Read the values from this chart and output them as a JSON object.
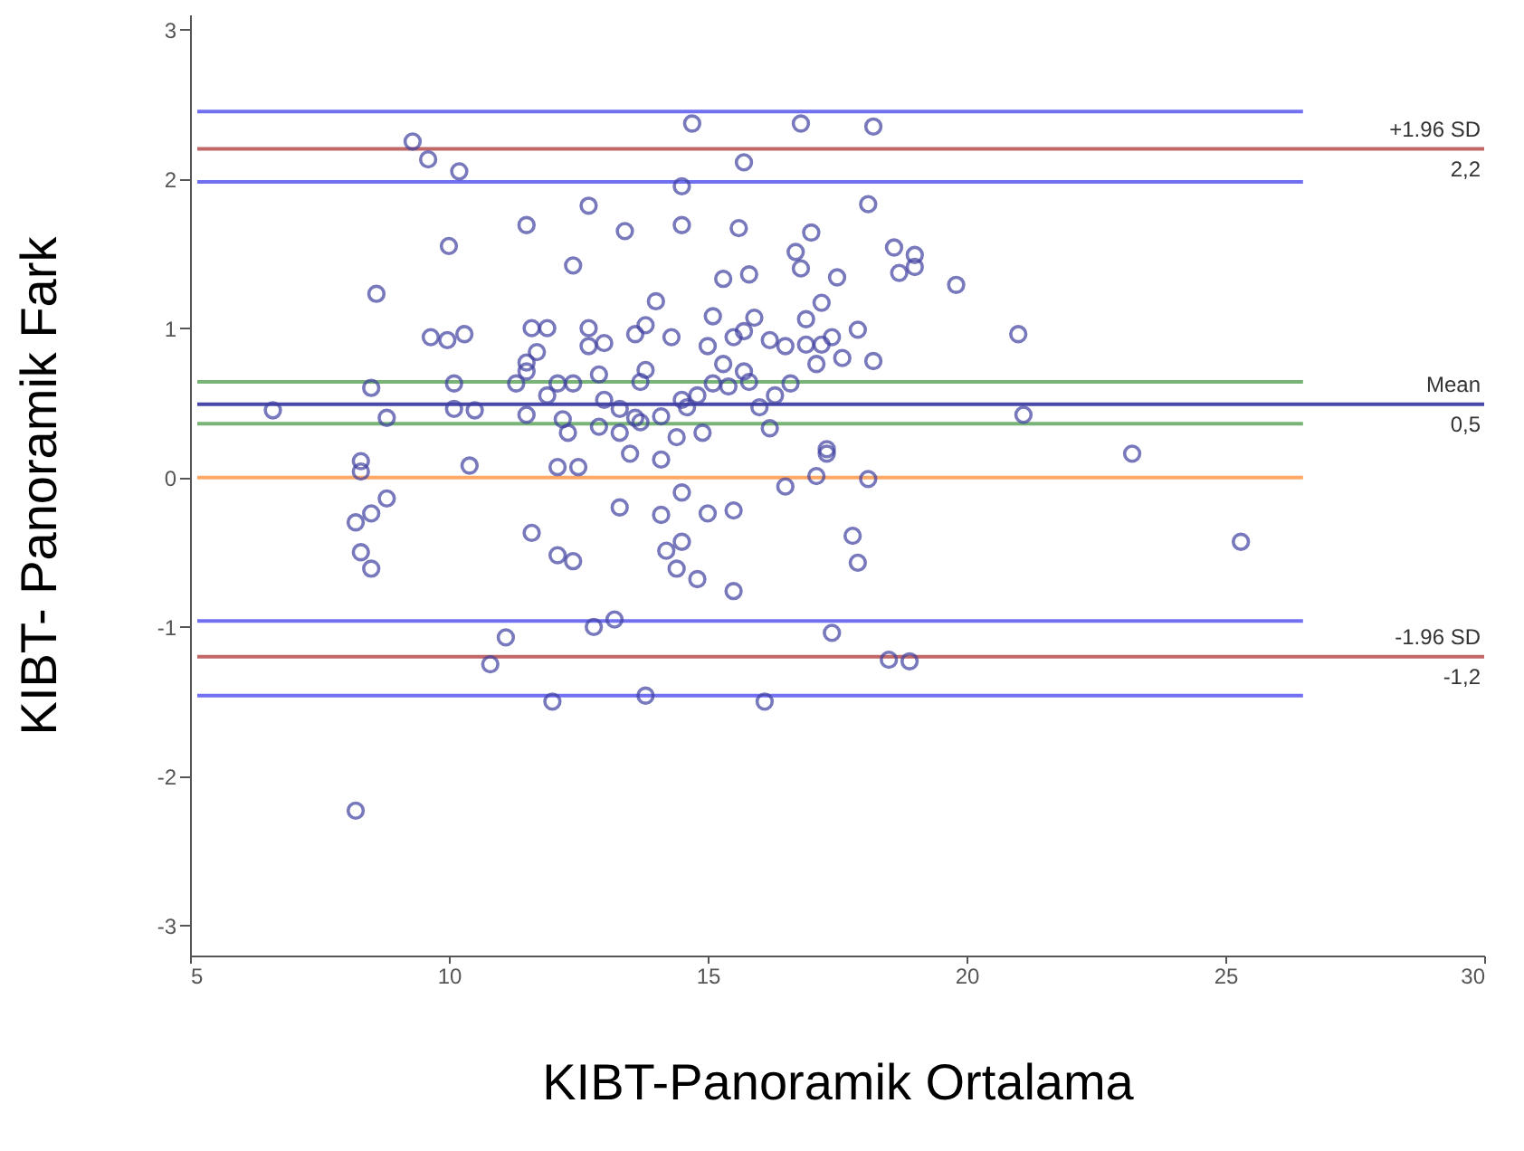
{
  "chart_data": {
    "type": "scatter",
    "xlabel": "KIBT-Panoramik Ortalama",
    "ylabel": "KIBT- Panoramik Fark",
    "xlim": [
      5,
      30
    ],
    "xticks": [
      5,
      10,
      15,
      20,
      25,
      30
    ],
    "ylim": [
      -3.2,
      3.1
    ],
    "yticks": [
      -3,
      -2,
      -1,
      0,
      1,
      2,
      3
    ],
    "grid": false,
    "marker": "circle",
    "series": [
      {
        "color": "#4040a0",
        "x": [
          6.6,
          9.3,
          9.6,
          10.2,
          11.5,
          12.7,
          13.4,
          10.0,
          12.4,
          8.6,
          9.65,
          9.97,
          10.3,
          11.6,
          11.9,
          12.7,
          13.0,
          12.7,
          13.6,
          11.7,
          11.5,
          11.5,
          12.9,
          8.5,
          10.1,
          11.3,
          12.1,
          12.4,
          8.8,
          10.1,
          10.5,
          11.5,
          11.9,
          12.2,
          12.3,
          12.9,
          13.0,
          13.3,
          13.3,
          13.6,
          14.7,
          16.8,
          18.2,
          15.7,
          14.5,
          18.1,
          14.5,
          15.6,
          17.0,
          16.7,
          16.8,
          18.6,
          19.0,
          19.0,
          18.7,
          19.8,
          15.3,
          15.8,
          17.5,
          14.0,
          17.2,
          15.1,
          15.9,
          16.9,
          13.8,
          14.3,
          15.0,
          15.5,
          15.7,
          16.2,
          16.5,
          16.9,
          17.2,
          17.4,
          17.9,
          17.1,
          17.6,
          18.2,
          21.0,
          13.8,
          15.3,
          15.7,
          13.7,
          15.1,
          15.4,
          15.8,
          16.6,
          14.8,
          14.5,
          16.3,
          16.0,
          14.6,
          21.1,
          14.1,
          13.7,
          14.4,
          14.9,
          16.2,
          17.3,
          8.3,
          8.3,
          10.4,
          12.1,
          12.5,
          8.8,
          8.5,
          8.2,
          13.3,
          11.6,
          8.3,
          8.5,
          12.1,
          12.4,
          11.1,
          10.8,
          12.8,
          13.2,
          12.0,
          8.2,
          13.5,
          14.1,
          17.3,
          17.1,
          18.1,
          16.5,
          23.2,
          14.1,
          14.5,
          15.0,
          15.5,
          17.8,
          17.9,
          25.3,
          14.2,
          14.5,
          14.4,
          14.8,
          15.5,
          17.4,
          18.5,
          18.9,
          13.8,
          16.1
        ],
        "values": [
          0.45,
          2.25,
          2.13,
          2.05,
          1.69,
          1.82,
          1.65,
          1.55,
          1.42,
          1.23,
          0.94,
          0.92,
          0.96,
          1.0,
          1.0,
          1.0,
          0.9,
          0.88,
          0.96,
          0.84,
          0.77,
          0.71,
          0.69,
          0.6,
          0.63,
          0.63,
          0.63,
          0.63,
          0.4,
          0.46,
          0.45,
          0.42,
          0.55,
          0.39,
          0.3,
          0.34,
          0.52,
          0.46,
          0.3,
          0.4,
          2.37,
          2.37,
          2.35,
          2.11,
          1.95,
          1.83,
          1.69,
          1.67,
          1.64,
          1.51,
          1.4,
          1.54,
          1.49,
          1.41,
          1.37,
          1.29,
          1.33,
          1.36,
          1.34,
          1.18,
          1.17,
          1.08,
          1.07,
          1.06,
          1.02,
          0.94,
          0.88,
          0.94,
          0.98,
          0.92,
          0.88,
          0.89,
          0.89,
          0.94,
          0.99,
          0.76,
          0.8,
          0.78,
          0.96,
          0.72,
          0.76,
          0.71,
          0.64,
          0.63,
          0.61,
          0.64,
          0.63,
          0.55,
          0.52,
          0.55,
          0.47,
          0.47,
          0.42,
          0.41,
          0.37,
          0.27,
          0.3,
          0.33,
          0.19,
          0.11,
          0.04,
          0.08,
          0.07,
          0.07,
          -0.14,
          -0.24,
          -0.3,
          -0.2,
          -0.37,
          -0.5,
          -0.61,
          -0.52,
          -0.56,
          -1.07,
          -1.25,
          -1.0,
          -0.95,
          -1.5,
          -2.23,
          0.16,
          0.12,
          0.16,
          0.01,
          -0.01,
          -0.06,
          0.16,
          -0.25,
          -0.1,
          -0.24,
          -0.22,
          -0.39,
          -0.57,
          -0.43,
          -0.49,
          -0.43,
          -0.61,
          -0.68,
          -0.76,
          -1.04,
          -1.22,
          -1.23,
          -1.46,
          -1.5
        ]
      }
    ],
    "ref_lines": [
      {
        "axis": "y",
        "value": 2.45,
        "color": "#7070f0",
        "line_style": "solid"
      },
      {
        "axis": "y",
        "value": 1.98,
        "color": "#7070f0",
        "line_style": "solid"
      },
      {
        "axis": "y",
        "value": 2.2,
        "label": "+1.96 SD",
        "color": "#c06868",
        "line_style": "solid"
      },
      {
        "axis": "y",
        "value": 0.64,
        "color": "#78b478",
        "line_style": "solid"
      },
      {
        "axis": "y",
        "value": 0.36,
        "color": "#78b478",
        "line_style": "solid"
      },
      {
        "axis": "y",
        "value": 0.49,
        "label": "Mean",
        "color": "#4848a8",
        "line_style": "solid"
      },
      {
        "axis": "y",
        "value": 0,
        "color": "#ffa866",
        "line_style": "solid"
      },
      {
        "axis": "y",
        "value": -0.96,
        "color": "#7070f0",
        "line_style": "solid"
      },
      {
        "axis": "y",
        "value": -1.46,
        "color": "#7070f0",
        "line_style": "solid"
      },
      {
        "axis": "y",
        "value": -1.2,
        "label": "-1.96 SD",
        "color": "#c06868",
        "line_style": "solid"
      }
    ],
    "annotations": [
      {
        "text": "2,2",
        "y": 2.2
      },
      {
        "text": "0,5",
        "y": 0.49
      },
      {
        "text": "-1,2",
        "y": -1.2
      }
    ]
  }
}
